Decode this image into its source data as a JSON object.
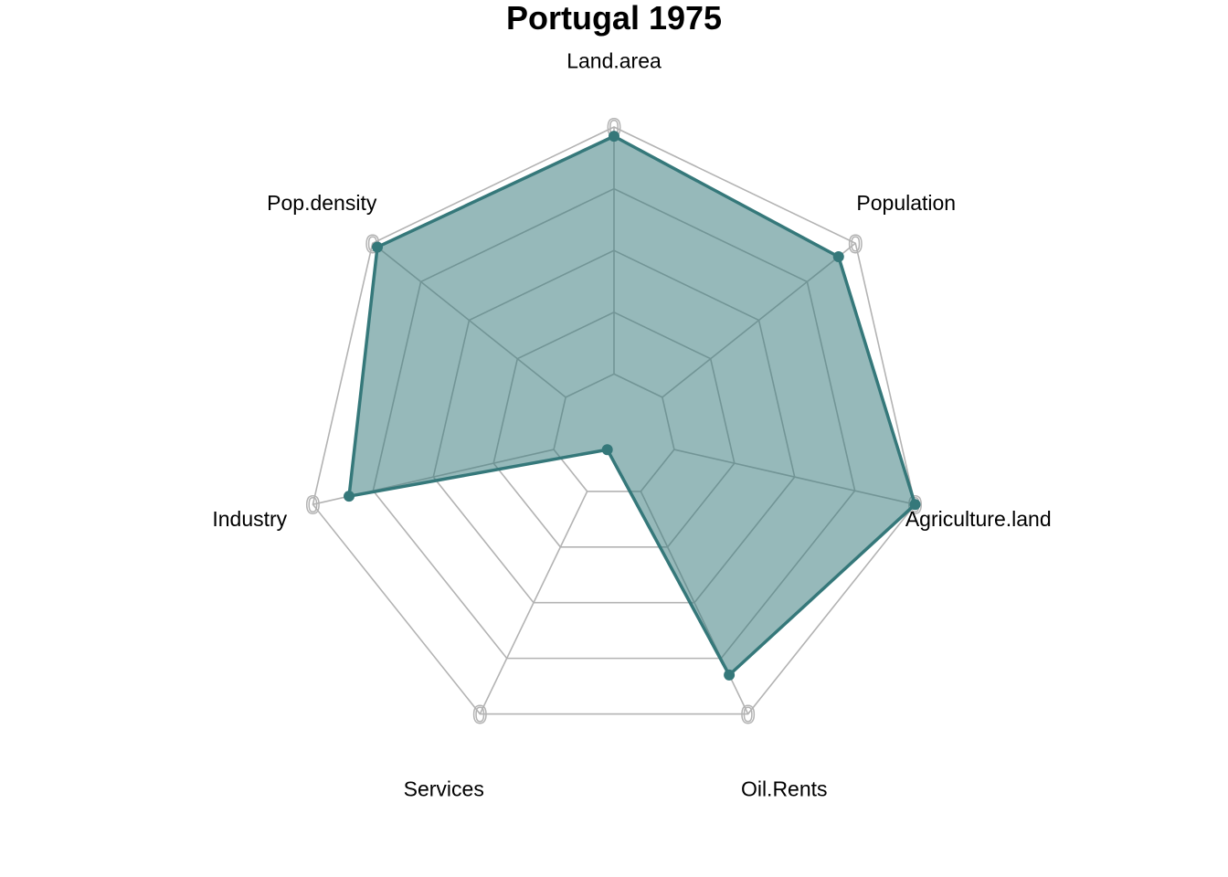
{
  "chart_data": {
    "type": "radar",
    "title": "Portugal 1975",
    "axes": [
      "Land.area",
      "Population",
      "Agriculture.land",
      "Oil.Rents",
      "Services",
      "Industry",
      "Pop.density"
    ],
    "values": [
      0.97,
      0.93,
      1.0,
      0.86,
      0.05,
      0.88,
      0.98
    ],
    "range": [
      0,
      1
    ],
    "grid_levels": 5,
    "tick_label": "0",
    "series_color": "#35787a",
    "fill_color": "#35787a",
    "fill_opacity": 0.52,
    "grid_color": "#b3b3b3",
    "label_color": "#000000"
  }
}
